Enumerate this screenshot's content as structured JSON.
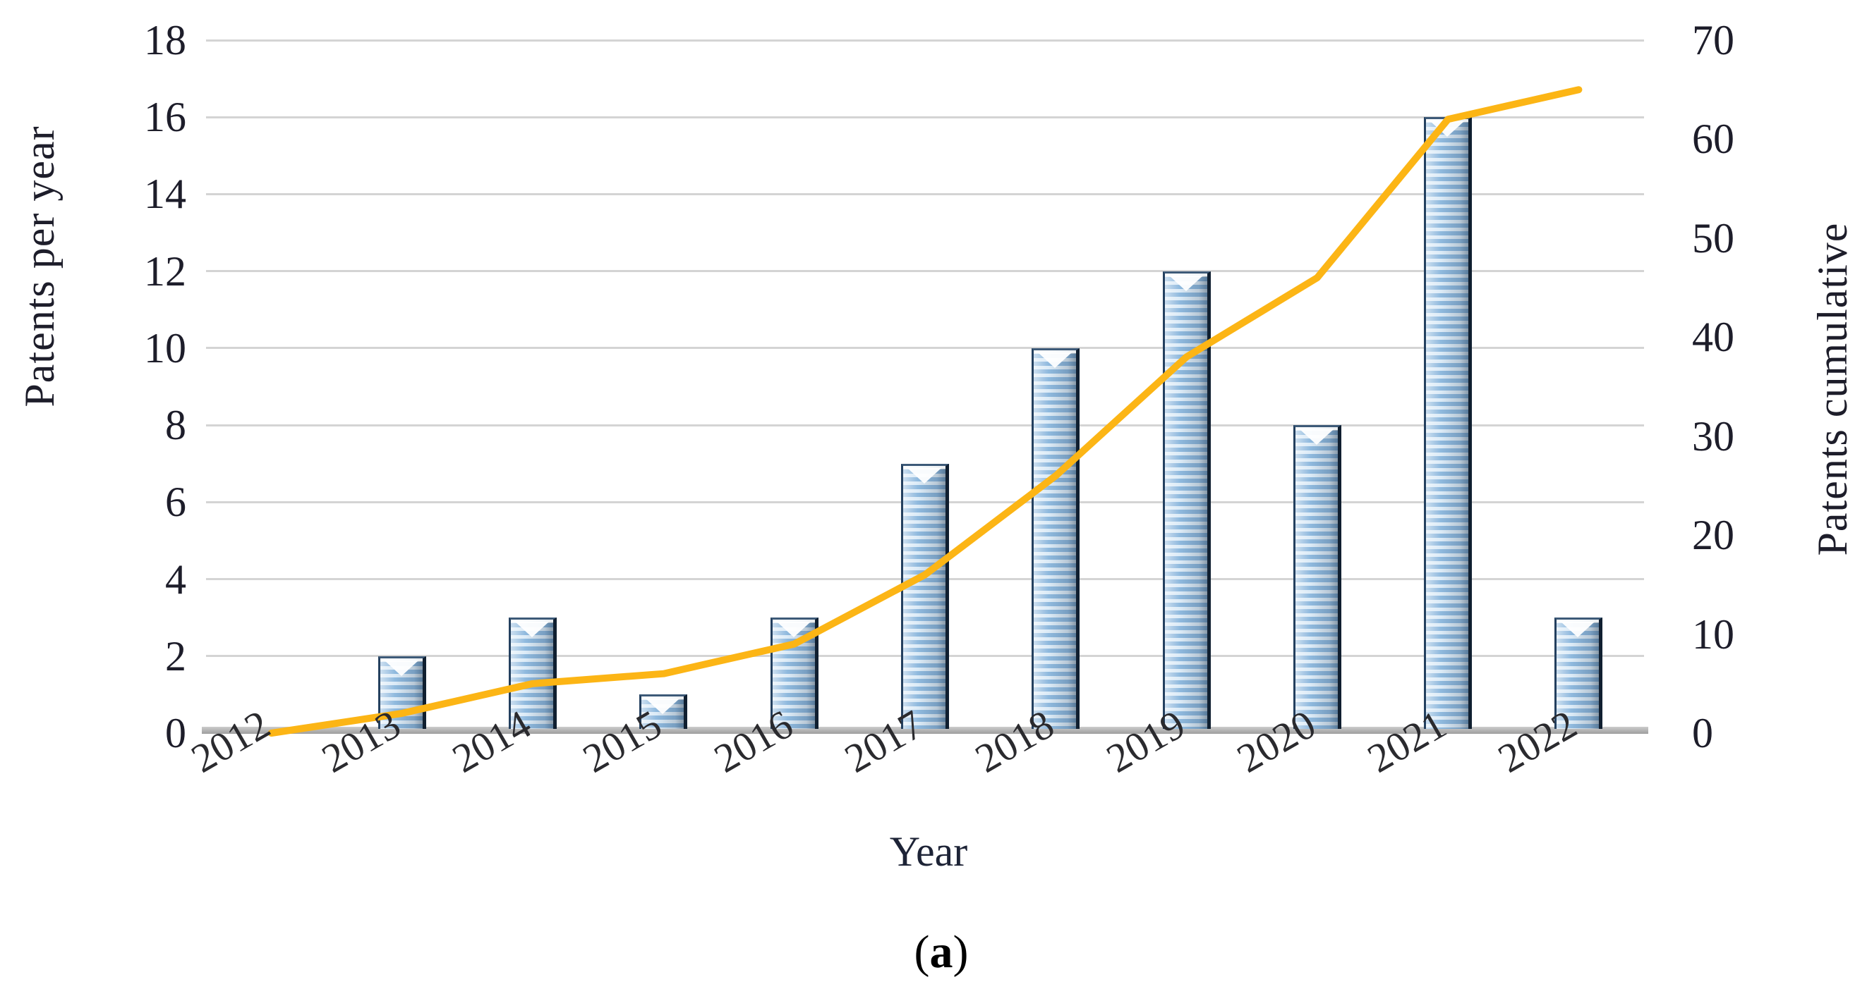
{
  "figure": {
    "panel": {
      "open": "(",
      "letter": "a",
      "close": ")"
    }
  },
  "chart_data": {
    "type": "bar+line combo",
    "title": "",
    "categories": [
      "2012",
      "2013",
      "2014",
      "2015",
      "2016",
      "2017",
      "2018",
      "2019",
      "2020",
      "2021",
      "2022"
    ],
    "series": [
      {
        "name": "Patents per year",
        "type": "bar",
        "axis": "left",
        "values": [
          0,
          2,
          3,
          1,
          3,
          7,
          10,
          12,
          8,
          16,
          3
        ]
      },
      {
        "name": "Patents cumulative",
        "type": "line",
        "axis": "right",
        "values": [
          0,
          2,
          5,
          6,
          9,
          16,
          26,
          38,
          46,
          62,
          65
        ]
      }
    ],
    "x_axis": {
      "label": "Year",
      "tick_labels": [
        "2012",
        "2013",
        "2014",
        "2015",
        "2016",
        "2017",
        "2018",
        "2019",
        "2020",
        "2021",
        "2022"
      ],
      "tick_rotation_deg": -30
    },
    "left_axis": {
      "label": "Patents per year",
      "min": 0,
      "max": 18,
      "step": 2,
      "ticks": [
        0,
        2,
        4,
        6,
        8,
        10,
        12,
        14,
        16,
        18
      ]
    },
    "right_axis": {
      "label": "Patents cumulative",
      "min": 0,
      "max": 70,
      "step": 10,
      "ticks": [
        0,
        10,
        20,
        30,
        40,
        50,
        60,
        70
      ]
    },
    "grid": true,
    "legend": false,
    "panel_caption": "(a)",
    "colors": {
      "bar_fill_light": "#DCEBF7",
      "bar_fill_dark": "#8FB9DE",
      "bar_edge_dark": "#101F30",
      "bar_edge_left": "#24405F",
      "line": "#FCB515",
      "gridline": "#D4D4D4",
      "axis_line": "#A8A8A8",
      "text": "#1D1D2A",
      "background": "#FFFFFF"
    }
  }
}
